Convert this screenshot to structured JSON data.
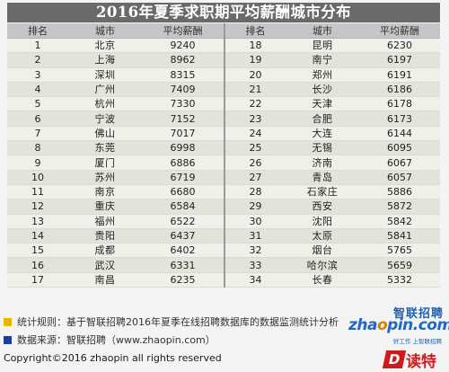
{
  "title": "2016年夏季求职期平均薪酬城市分布",
  "headers": [
    "排名",
    "城市",
    "平均薪酬",
    "排名",
    "城市",
    "平均薪酬"
  ],
  "rows": [
    [
      "1",
      "北京",
      "9240",
      "18",
      "昆明",
      "6230"
    ],
    [
      "2",
      "上海",
      "8962",
      "19",
      "南宁",
      "6197"
    ],
    [
      "3",
      "深圳",
      "8315",
      "20",
      "郑州",
      "6191"
    ],
    [
      "4",
      "广州",
      "7409",
      "21",
      "长沙",
      "6186"
    ],
    [
      "5",
      "杭州",
      "7330",
      "22",
      "天津",
      "6178"
    ],
    [
      "6",
      "宁波",
      "7152",
      "23",
      "合肥",
      "6173"
    ],
    [
      "7",
      "佛山",
      "7017",
      "24",
      "大连",
      "6144"
    ],
    [
      "8",
      "东莞",
      "6998",
      "25",
      "无锡",
      "6095"
    ],
    [
      "9",
      "厦门",
      "6886",
      "26",
      "济南",
      "6067"
    ],
    [
      "10",
      "苏州",
      "6719",
      "27",
      "青岛",
      "6057"
    ],
    [
      "11",
      "南京",
      "6680",
      "28",
      "石家庄",
      "5886"
    ],
    [
      "12",
      "重庆",
      "6584",
      "29",
      "西安",
      "5872"
    ],
    [
      "13",
      "福州",
      "6522",
      "30",
      "沈阳",
      "5842"
    ],
    [
      "14",
      "贵阳",
      "6437",
      "31",
      "太原",
      "5841"
    ],
    [
      "15",
      "成都",
      "6402",
      "32",
      "烟台",
      "5765"
    ],
    [
      "16",
      "武汉",
      "6331",
      "33",
      "哈尔滨",
      "5659"
    ],
    [
      "17",
      "南昌",
      "6235",
      "34",
      "长春",
      "5332"
    ]
  ],
  "notes": {
    "stats_rule": "统计规则：基于智联招聘2016年夏季在线招聘数据库的数据监测统计分析",
    "data_source": "数据来源：智联招聘（www.zhaopin.com）"
  },
  "logo": {
    "cn": "智联招聘",
    "en_prefix": "zha",
    "en_o": "o",
    "en_suffix": "pin.com",
    "slogan": "好工作 上智联招聘"
  },
  "copyright": "Copyright©2016 zhaopin all rights reserved",
  "watermark": {
    "letter": "D",
    "text": "读特"
  },
  "colors": {
    "title_bg": "#6a6a6a",
    "header_bg": "#c6c6c6",
    "row_odd": "#f0efe8",
    "row_even": "#e4e3da",
    "bullet_stats": "#e6b800",
    "bullet_source": "#1c3f94",
    "brand_blue": "#2267c4",
    "brand_orange": "#e07b00",
    "watermark_red": "#d01a1a"
  }
}
